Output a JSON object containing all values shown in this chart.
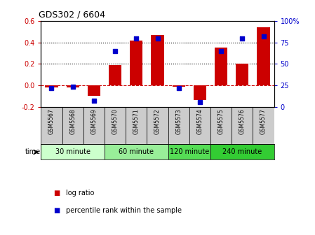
{
  "title": "GDS302 / 6604",
  "samples": [
    "GSM5567",
    "GSM5568",
    "GSM5569",
    "GSM5570",
    "GSM5571",
    "GSM5572",
    "GSM5573",
    "GSM5574",
    "GSM5575",
    "GSM5576",
    "GSM5577"
  ],
  "log_ratio": [
    -0.02,
    -0.02,
    -0.1,
    0.19,
    0.42,
    0.47,
    -0.01,
    -0.14,
    0.35,
    0.2,
    0.54
  ],
  "percentile": [
    22,
    23,
    7,
    65,
    80,
    80,
    22,
    5,
    65,
    80,
    82
  ],
  "bar_color": "#cc0000",
  "dot_color": "#0000cc",
  "left_ylim": [
    -0.2,
    0.6
  ],
  "right_ylim": [
    0,
    100
  ],
  "left_yticks": [
    -0.2,
    0.0,
    0.2,
    0.4,
    0.6
  ],
  "right_yticks": [
    0,
    25,
    50,
    75,
    100
  ],
  "right_yticklabels": [
    "0",
    "25",
    "50",
    "75",
    "100%"
  ],
  "dotted_lines": [
    0.2,
    0.4
  ],
  "dashed_zero": 0.0,
  "time_groups": [
    {
      "label": "30 minute",
      "start": 0,
      "end": 3,
      "color": "#ccffcc"
    },
    {
      "label": "60 minute",
      "start": 3,
      "end": 6,
      "color": "#99ee99"
    },
    {
      "label": "120 minute",
      "start": 6,
      "end": 8,
      "color": "#55dd55"
    },
    {
      "label": "240 minute",
      "start": 8,
      "end": 11,
      "color": "#33cc33"
    }
  ],
  "legend_items": [
    {
      "label": "log ratio",
      "color": "#cc0000"
    },
    {
      "label": "percentile rank within the sample",
      "color": "#0000cc"
    }
  ],
  "time_label": "time",
  "bar_color_left": "#cc0000",
  "ylabel_right_color": "#0000cc",
  "label_bg": "#cccccc"
}
